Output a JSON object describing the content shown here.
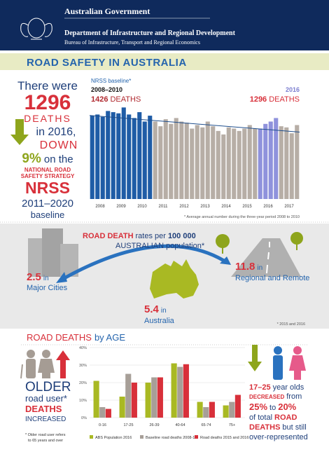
{
  "header": {
    "gov": "Australian Government",
    "dept": "Department of Infrastructure and Regional Development",
    "bureau": "Bureau of Infrastructure, Transport and Regional Economics"
  },
  "title": "ROAD SAFETY IN AUSTRALIA",
  "summary": {
    "there": "There were",
    "count": "1296",
    "deaths": "DEATHS",
    "year": "in 2016,",
    "down": "DOWN",
    "pct": "9%",
    "on": "on the",
    "nrs1": "NATIONAL ROAD",
    "nrs2": "SAFETY STRATEGY",
    "nrss": "NRSS",
    "span": "2011–2020",
    "baseline": "baseline"
  },
  "chart_data": [
    {
      "type": "bar",
      "label": "NRSS baseline*",
      "left_period": "2008–2010",
      "left_count": "1426",
      "left_unit": "DEATHS",
      "right_period": "2016",
      "right_count": "1296",
      "right_unit": "DEATHS",
      "x_labels": [
        "2008",
        "2009",
        "2010",
        "2011",
        "2012",
        "2013",
        "2014",
        "2015",
        "2016",
        "2017"
      ],
      "values": [
        355,
        360,
        350,
        375,
        370,
        365,
        390,
        360,
        345,
        370,
        330,
        355,
        330,
        310,
        340,
        320,
        345,
        330,
        325,
        300,
        315,
        305,
        330,
        310,
        290,
        275,
        305,
        300,
        290,
        300,
        315,
        300,
        300,
        320,
        330,
        345,
        310,
        305,
        280,
        315
      ],
      "colors": [
        "#1f5ca6",
        "#1f5ca6",
        "#1f5ca6",
        "#1f5ca6",
        "#1f5ca6",
        "#1f5ca6",
        "#1f5ca6",
        "#1f5ca6",
        "#1f5ca6",
        "#1f5ca6",
        "#1f5ca6",
        "#1f5ca6",
        "#b7aea6",
        "#b7aea6",
        "#b7aea6",
        "#b7aea6",
        "#b7aea6",
        "#b7aea6",
        "#b7aea6",
        "#b7aea6",
        "#b7aea6",
        "#b7aea6",
        "#b7aea6",
        "#b7aea6",
        "#b7aea6",
        "#b7aea6",
        "#b7aea6",
        "#b7aea6",
        "#b7aea6",
        "#b7aea6",
        "#b7aea6",
        "#b7aea6",
        "#8f92dc",
        "#8f92dc",
        "#8f92dc",
        "#8f92dc",
        "#b7aea6",
        "#b7aea6",
        "#b7aea6",
        "#b7aea6"
      ],
      "trend": [
        356,
        285
      ],
      "trend_color": "#1f4e8c",
      "ylim": [
        0,
        400
      ],
      "note": "* Average annual number during the three-year period 2008 to 2010"
    },
    {
      "type": "grouped_bar",
      "categories": [
        "0-16",
        "17-25",
        "26-39",
        "40-64",
        "65-74",
        "75+"
      ],
      "series": [
        {
          "name": "ABS Population 2016",
          "color": "#a9b923",
          "values": [
            21,
            12,
            20,
            31,
            9,
            7
          ]
        },
        {
          "name": "Baseline road deaths 2008-10",
          "color": "#a79f98",
          "values": [
            6,
            25,
            23,
            29,
            6,
            9
          ]
        },
        {
          "name": "Road deaths 2015 and 2016",
          "color": "#d8303a",
          "values": [
            5,
            20,
            23,
            30.5,
            9,
            13
          ]
        }
      ],
      "ylim": [
        0,
        40
      ],
      "yticks": [
        {
          "value": 0,
          "label": "0%"
        },
        {
          "value": 10,
          "label": "10%"
        },
        {
          "value": 20,
          "label": "20%"
        },
        {
          "value": 30,
          "label": "30%"
        },
        {
          "value": 40,
          "label": "40%"
        }
      ],
      "grid": true
    }
  ],
  "rates": {
    "h1": "ROAD DEATH",
    "h2": "rates per",
    "h3": "100 000",
    "h4": "AUSTRALIAN",
    "h5": "population*",
    "cities_value": "2.5",
    "cities_in": "in",
    "cities": "Major Cities",
    "aus_value": "5.4",
    "aus_in": "in",
    "aus": "Australia",
    "remote_value": "11.8",
    "remote_in": "in",
    "remote": "Regional and Remote",
    "note": "* 2015 and 2016"
  },
  "age": {
    "h1": "ROAD DEATHS",
    "h2": "by AGE",
    "older": "OLDER",
    "user": "road user*",
    "deaths": "DEATHS",
    "increased": "INCREASED",
    "note1": "* Older road user refers",
    "note2": "to 65 years and over",
    "y1": "17–25",
    "y2": "year olds",
    "y3": "DECREASED",
    "y4": "from",
    "y5": "25%",
    "y6": "to",
    "y7": "20%",
    "y8": "of total",
    "y9": "ROAD",
    "y10": "DEATHS",
    "y11": "but still",
    "y12": "over-represented"
  }
}
